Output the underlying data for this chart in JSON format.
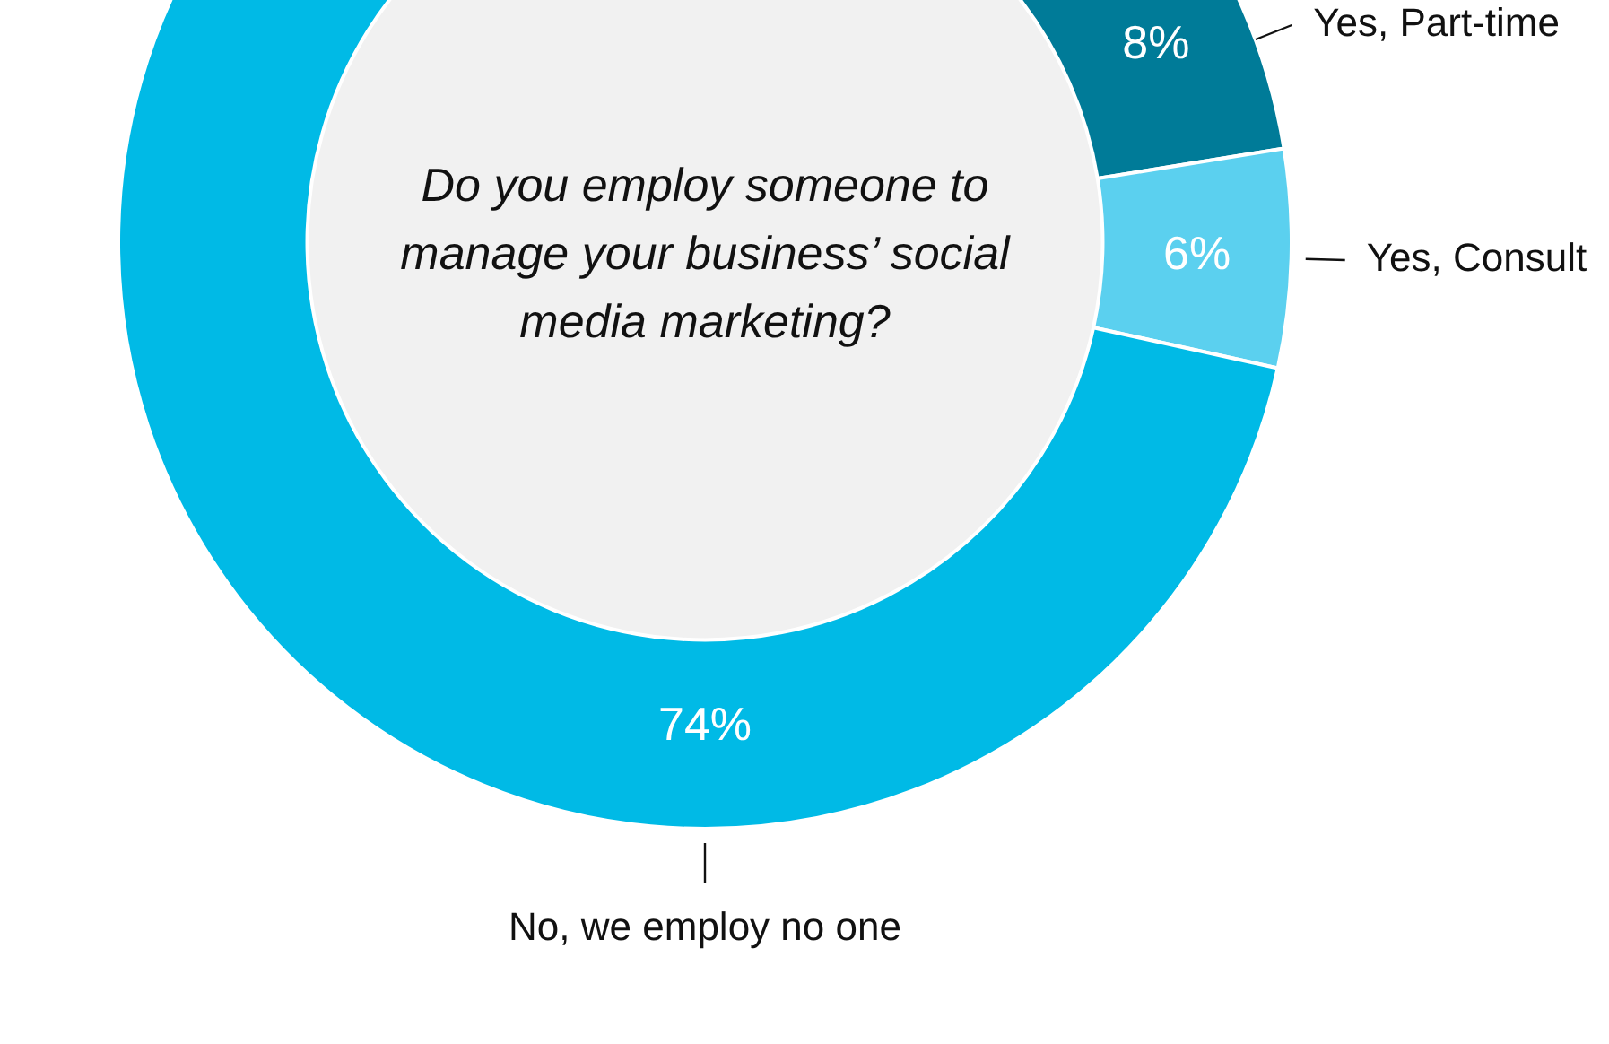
{
  "chart_data": {
    "type": "donut",
    "title": "Do you employ someone to manage your business’ social media marketing?",
    "categories": [
      "Yes, Part-time",
      "Yes, Consult",
      "No, we employ no one"
    ],
    "values": [
      8,
      6,
      74
    ],
    "colors": [
      "#007b98",
      "#5bd0ef",
      "#00bae6"
    ],
    "value_labels": [
      "8%",
      "6%",
      "74%"
    ],
    "legend": false
  }
}
